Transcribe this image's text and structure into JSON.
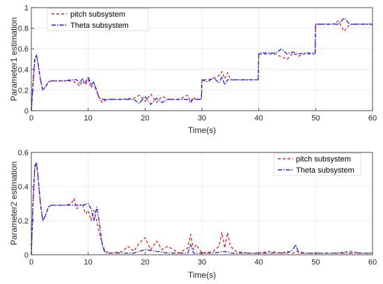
{
  "colors": {
    "pitch": "#d42020",
    "theta": "#1515e0",
    "grid": "#e6e6e6",
    "axis": "#262626"
  },
  "chart_data": [
    {
      "type": "line",
      "xlabel": "Time(s)",
      "ylabel": "Parameter1 estimation",
      "xlim": [
        0,
        60
      ],
      "ylim": [
        0,
        1
      ],
      "xticks": [
        "0",
        "10",
        "20",
        "30",
        "40",
        "50",
        "60"
      ],
      "yticks": [
        "0",
        "0.2",
        "0.4",
        "0.6",
        "0.8",
        "1"
      ],
      "grid": true,
      "legend_position": "top-left",
      "series": [
        {
          "name": "pitch subsystem",
          "style": "dashed",
          "x": [
            0,
            0.3,
            0.6,
            0.9,
            1.2,
            1.6,
            2.0,
            2.5,
            3.0,
            3.5,
            4.0,
            5.0,
            6.0,
            7.0,
            8.0,
            8.5,
            9.0,
            9.5,
            10.0,
            10.5,
            11.0,
            11.5,
            12.0,
            12.5,
            13.0,
            14.0,
            16.0,
            18.0,
            19.0,
            20.0,
            21.0,
            22.0,
            23.0,
            24.0,
            26.0,
            27.5,
            28.0,
            28.5,
            29.0,
            29.9,
            30.0,
            31.0,
            32.0,
            33.0,
            33.5,
            34.0,
            34.5,
            35.0,
            36.0,
            38.0,
            39.9,
            40.0,
            42.0,
            43.0,
            44.0,
            45.0,
            46.0,
            47.0,
            48.0,
            49.9,
            50.0,
            52.0,
            53.0,
            54.0,
            55.0,
            56.0,
            58.0,
            60.0
          ],
          "values": [
            0,
            0.25,
            0.48,
            0.54,
            0.45,
            0.3,
            0.2,
            0.23,
            0.28,
            0.29,
            0.29,
            0.29,
            0.29,
            0.29,
            0.27,
            0.24,
            0.29,
            0.25,
            0.3,
            0.22,
            0.27,
            0.2,
            0.11,
            0.08,
            0.1,
            0.11,
            0.11,
            0.12,
            0.15,
            0.09,
            0.16,
            0.08,
            0.14,
            0.11,
            0.11,
            0.15,
            0.09,
            0.13,
            0.11,
            0.11,
            0.3,
            0.3,
            0.31,
            0.34,
            0.38,
            0.31,
            0.37,
            0.3,
            0.3,
            0.3,
            0.3,
            0.55,
            0.55,
            0.55,
            0.52,
            0.5,
            0.56,
            0.53,
            0.55,
            0.55,
            0.84,
            0.84,
            0.84,
            0.87,
            0.77,
            0.84,
            0.84,
            0.84
          ]
        },
        {
          "name": "Theta subsystem",
          "style": "dash-dot",
          "x": [
            0,
            0.3,
            0.6,
            0.9,
            1.2,
            1.6,
            2.0,
            2.5,
            3.0,
            3.5,
            4.0,
            5.0,
            6.0,
            7.0,
            8.0,
            8.5,
            9.0,
            9.5,
            10.0,
            10.5,
            11.0,
            11.5,
            12.0,
            12.5,
            13.0,
            14.0,
            16.0,
            18.0,
            19.0,
            20.0,
            21.0,
            22.0,
            23.0,
            24.0,
            26.0,
            27.5,
            28.0,
            28.5,
            29.0,
            29.9,
            30.0,
            31.0,
            32.0,
            33.0,
            33.5,
            34.0,
            34.5,
            35.0,
            36.0,
            38.0,
            39.9,
            40.0,
            42.0,
            43.0,
            44.0,
            45.0,
            46.0,
            47.0,
            48.0,
            49.9,
            50.0,
            52.0,
            53.0,
            54.0,
            55.0,
            56.0,
            58.0,
            60.0
          ],
          "values": [
            0,
            0.28,
            0.5,
            0.54,
            0.45,
            0.3,
            0.2,
            0.23,
            0.28,
            0.29,
            0.29,
            0.29,
            0.29,
            0.3,
            0.3,
            0.27,
            0.31,
            0.27,
            0.33,
            0.25,
            0.28,
            0.18,
            0.12,
            0.11,
            0.11,
            0.11,
            0.11,
            0.11,
            0.07,
            0.14,
            0.06,
            0.12,
            0.08,
            0.11,
            0.11,
            0.11,
            0.08,
            0.12,
            0.11,
            0.11,
            0.3,
            0.28,
            0.32,
            0.27,
            0.33,
            0.25,
            0.3,
            0.3,
            0.3,
            0.3,
            0.3,
            0.56,
            0.56,
            0.56,
            0.6,
            0.55,
            0.57,
            0.55,
            0.56,
            0.56,
            0.84,
            0.84,
            0.84,
            0.84,
            0.9,
            0.84,
            0.84,
            0.84
          ]
        }
      ]
    },
    {
      "type": "line",
      "xlabel": "Time(s)",
      "ylabel": "Parameter2 estimation",
      "xlim": [
        0,
        60
      ],
      "ylim": [
        0,
        0.6
      ],
      "xticks": [
        "0",
        "10",
        "20",
        "30",
        "40",
        "50",
        "60"
      ],
      "yticks": [
        "0",
        "0.2",
        "0.4",
        "0.6"
      ],
      "grid": true,
      "legend_position": "top-right",
      "series": [
        {
          "name": "pitch subsystem",
          "style": "dashed",
          "x": [
            0,
            0.3,
            0.6,
            0.9,
            1.2,
            1.6,
            2.0,
            2.5,
            3.0,
            3.5,
            4.0,
            5.0,
            6.0,
            7.0,
            7.5,
            8.0,
            9.0,
            9.5,
            10.0,
            10.5,
            11.0,
            11.5,
            12.0,
            12.5,
            13.0,
            14.0,
            16.0,
            17.0,
            18.0,
            19.0,
            20.0,
            21.0,
            22.0,
            23.0,
            24.0,
            26.0,
            27.5,
            28.0,
            28.5,
            29.0,
            30.0,
            32.0,
            33.0,
            33.5,
            34.0,
            34.5,
            35.0,
            36.0,
            38.0,
            40.0,
            42.0,
            44.0,
            45.0,
            46.0,
            47.0,
            48.0,
            50.0,
            52.0,
            54.0,
            56.0,
            58.0,
            60.0
          ],
          "values": [
            0,
            0.3,
            0.5,
            0.54,
            0.45,
            0.3,
            0.2,
            0.23,
            0.28,
            0.29,
            0.29,
            0.29,
            0.29,
            0.3,
            0.33,
            0.27,
            0.3,
            0.24,
            0.26,
            0.2,
            0.26,
            0.2,
            0.12,
            0.06,
            0.02,
            0.01,
            0.02,
            0.05,
            0.02,
            0.07,
            0.1,
            0.03,
            0.08,
            0.03,
            0.05,
            0.01,
            0.04,
            0.12,
            0.03,
            0.06,
            0.01,
            0.02,
            0.05,
            0.13,
            0.04,
            0.13,
            0.05,
            0.02,
            0.01,
            0.01,
            0.02,
            0.01,
            0.02,
            0.01,
            0.02,
            0.01,
            0.01,
            0.01,
            0.01,
            0.02,
            0.01,
            0.01
          ]
        },
        {
          "name": "Theta subsystem",
          "style": "dash-dot",
          "x": [
            0,
            0.3,
            0.6,
            0.9,
            1.2,
            1.6,
            2.0,
            2.5,
            3.0,
            3.5,
            4.0,
            5.0,
            6.0,
            7.0,
            8.0,
            9.0,
            10.0,
            10.5,
            11.0,
            11.5,
            12.0,
            12.5,
            13.0,
            14.0,
            16.0,
            18.0,
            20.0,
            22.0,
            24.0,
            26.0,
            27.5,
            28.0,
            28.5,
            30.0,
            32.0,
            34.0,
            35.0,
            36.0,
            38.0,
            40.0,
            42.0,
            44.0,
            45.0,
            46.0,
            46.5,
            47.0,
            48.0,
            50.0,
            52.0,
            54.0,
            56.0,
            58.0,
            60.0
          ],
          "values": [
            0,
            0.32,
            0.52,
            0.54,
            0.45,
            0.3,
            0.2,
            0.23,
            0.28,
            0.29,
            0.29,
            0.29,
            0.29,
            0.29,
            0.29,
            0.29,
            0.3,
            0.27,
            0.2,
            0.28,
            0.18,
            0.05,
            0.01,
            0.01,
            0.01,
            0.01,
            0.03,
            0.02,
            0.01,
            0.01,
            0.01,
            0.06,
            0.01,
            0.01,
            0.01,
            0.02,
            0.01,
            0.01,
            0.01,
            0.01,
            0.01,
            0.01,
            0.01,
            0.03,
            0.06,
            0.01,
            0.01,
            0.01,
            0.01,
            0.01,
            0.01,
            0.01,
            0.01
          ]
        }
      ]
    }
  ]
}
